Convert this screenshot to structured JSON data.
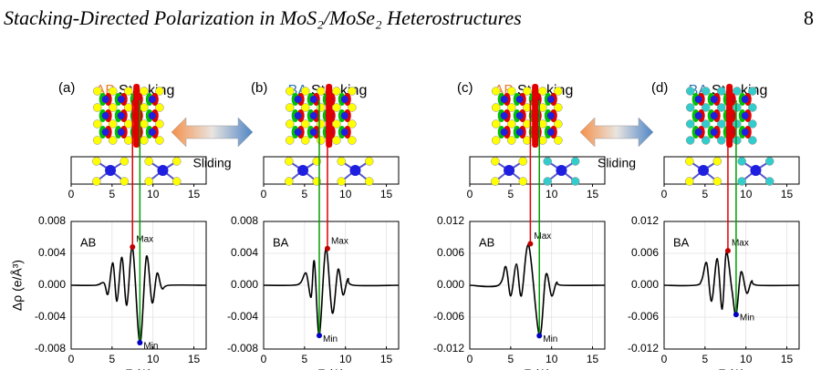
{
  "header": {
    "title": "Stacking-Directed Polarization in MoS₂/MoSe₂ Heterostructures",
    "page": "8"
  },
  "figure": {
    "sliding": [
      "Sliding",
      "Sliding"
    ]
  },
  "chart_data": [
    {
      "type": "line",
      "panel_label": "(a)",
      "stacking": "AB",
      "stacking_suffix": "Stacking",
      "stacking_color": "#ed7d31",
      "inset_label": "AB",
      "ylabel": "Δρ (e/Å³)",
      "xlabel": "Z (A)",
      "color": "#000000",
      "grid": true,
      "x": [
        0,
        3,
        4,
        4.5,
        5.1,
        5.6,
        6.2,
        6.8,
        7.5,
        8.4,
        9.2,
        9.9,
        10.5,
        11.1,
        12,
        16.5
      ],
      "values": [
        0,
        0,
        0.0003,
        -0.0011,
        0.0028,
        -0.002,
        0.0035,
        -0.0025,
        0.0048,
        -0.0072,
        0.0036,
        -0.0022,
        0.0015,
        -0.0004,
        0,
        0
      ],
      "annotations": [
        {
          "text": "Max",
          "x": 7.5,
          "y": 0.0048,
          "color": "#c00000"
        },
        {
          "text": "Min",
          "x": 8.4,
          "y": -0.0072,
          "color": "#0000c0"
        }
      ],
      "xlim": [
        0,
        16.5
      ],
      "xticks": [
        0,
        5,
        10,
        15
      ],
      "ylim": [
        -0.008,
        0.008
      ],
      "yticks": [
        -0.008,
        -0.004,
        {
          "value": 0,
          "label": "0.000"
        },
        0.004,
        0.008
      ],
      "structure_xticks": [
        0,
        5,
        10,
        15
      ]
    },
    {
      "type": "line",
      "panel_label": "(b)",
      "stacking": "BA",
      "stacking_suffix": "Stacking",
      "stacking_color": "#2e75b6",
      "inset_label": "BA",
      "xlabel": "Z (A)",
      "color": "#000000",
      "grid": true,
      "x": [
        0,
        3.5,
        4.5,
        5.2,
        5.8,
        6.2,
        6.8,
        7.6,
        8.4,
        9.1,
        9.7,
        10.3,
        11,
        16.5
      ],
      "values": [
        0,
        0,
        0.0003,
        0.0015,
        -0.0015,
        0.003,
        -0.0063,
        0.0046,
        -0.0035,
        0.002,
        -0.0012,
        0.0008,
        0,
        0
      ],
      "annotations": [
        {
          "text": "Max",
          "x": 7.8,
          "y": 0.0046,
          "color": "#c00000"
        },
        {
          "text": "Min",
          "x": 6.8,
          "y": -0.0063,
          "color": "#0000c0"
        }
      ],
      "xlim": [
        0,
        16.5
      ],
      "xticks": [
        0,
        5,
        10,
        15
      ],
      "ylim": [
        -0.008,
        0.008
      ],
      "yticks": [
        -0.008,
        -0.004,
        {
          "value": 0,
          "label": "0.000"
        },
        0.004,
        0.008
      ],
      "structure_xticks": [
        0,
        5,
        10,
        15
      ]
    },
    {
      "type": "line",
      "panel_label": "(c)",
      "stacking": "AB",
      "stacking_suffix": "Stacking",
      "stacking_color": "#ed7d31",
      "inset_label": "AB",
      "xlabel": "Z (A)",
      "color": "#000000",
      "grid": true,
      "x": [
        0,
        3.5,
        4.4,
        5,
        5.7,
        6.3,
        7.2,
        8.5,
        9.3,
        10,
        10.6,
        11.3,
        16.5
      ],
      "values": [
        0,
        0,
        0.0035,
        -0.002,
        0.004,
        -0.002,
        0.0075,
        -0.0095,
        0.002,
        -0.002,
        0.0005,
        0,
        0
      ],
      "annotations": [
        {
          "text": "Max",
          "x": 7.4,
          "y": 0.0078,
          "color": "#c00000"
        },
        {
          "text": "Min",
          "x": 8.5,
          "y": -0.0095,
          "color": "#0000c0"
        }
      ],
      "xlim": [
        0,
        16.5
      ],
      "xticks": [
        0,
        5,
        10,
        15
      ],
      "ylim": [
        -0.012,
        0.012
      ],
      "yticks": [
        -0.012,
        -0.006,
        {
          "value": 0,
          "label": "0.000"
        },
        0.006,
        0.012
      ],
      "structure_xticks": [
        0,
        5,
        10,
        15
      ]
    },
    {
      "type": "line",
      "panel_label": "(d)",
      "stacking": "BA",
      "stacking_suffix": "Stacking",
      "stacking_color": "#2e75b6",
      "inset_label": "BA",
      "xlabel": "Z (A)",
      "color": "#000000",
      "grid": true,
      "x": [
        0,
        3.8,
        4.6,
        5.2,
        5.8,
        6.5,
        7.1,
        7.6,
        8.3,
        8.8,
        9.4,
        10.1,
        10.7,
        11.4,
        16.5
      ],
      "values": [
        0,
        0,
        0.001,
        0.0042,
        -0.003,
        0.005,
        -0.0045,
        0.0062,
        -0.001,
        -0.0055,
        0.0025,
        -0.0015,
        0.0008,
        0,
        0
      ],
      "annotations": [
        {
          "text": "Max",
          "x": 7.8,
          "y": 0.0065,
          "color": "#c00000"
        },
        {
          "text": "Min",
          "x": 8.8,
          "y": -0.0055,
          "color": "#0000c0"
        }
      ],
      "xlim": [
        0,
        16.5
      ],
      "xticks": [
        0,
        5,
        10,
        15
      ],
      "ylim": [
        -0.012,
        0.012
      ],
      "yticks": [
        -0.012,
        -0.006,
        {
          "value": 0,
          "label": "0.000"
        },
        0.006,
        0.012
      ],
      "structure_xticks": [
        0,
        5,
        10,
        15
      ]
    }
  ]
}
